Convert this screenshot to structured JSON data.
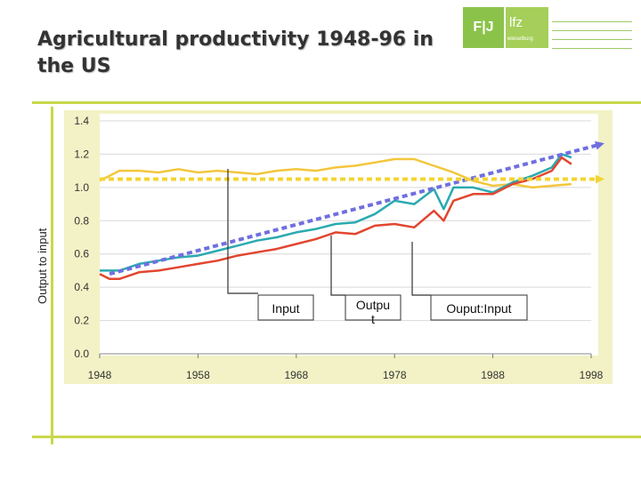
{
  "title": "Agricultural productivity 1948-96 in the US",
  "logo": {
    "mark": "F|J",
    "mark2": "lfz",
    "mark2_sub": "wieselburg"
  },
  "chart_data": {
    "type": "line",
    "ylabel": "Output to input",
    "xlim": [
      1948,
      1998
    ],
    "ylim": [
      0.0,
      1.4
    ],
    "xticks": [
      1948,
      1958,
      1968,
      1978,
      1988,
      1998
    ],
    "yticks": [
      0.0,
      0.2,
      0.4,
      0.6,
      0.8,
      1.0,
      1.2,
      1.4
    ],
    "grid": true,
    "series": [
      {
        "name": "Input",
        "color": "#f3c63c",
        "width": 2.5,
        "x": [
          1948,
          1950,
          1952,
          1954,
          1956,
          1958,
          1960,
          1962,
          1964,
          1966,
          1968,
          1970,
          1972,
          1974,
          1976,
          1978,
          1980,
          1982,
          1984,
          1986,
          1988,
          1990,
          1992,
          1994,
          1996
        ],
        "y": [
          1.04,
          1.1,
          1.1,
          1.09,
          1.11,
          1.09,
          1.1,
          1.09,
          1.08,
          1.1,
          1.11,
          1.1,
          1.12,
          1.13,
          1.15,
          1.17,
          1.17,
          1.13,
          1.09,
          1.04,
          1.01,
          1.02,
          1.0,
          1.01,
          1.02
        ]
      },
      {
        "name": "Outpu t",
        "color": "#2aaab0",
        "width": 2.5,
        "x": [
          1948,
          1950,
          1952,
          1954,
          1956,
          1958,
          1960,
          1962,
          1964,
          1966,
          1968,
          1970,
          1972,
          1974,
          1976,
          1978,
          1980,
          1982,
          1983,
          1984,
          1986,
          1988,
          1990,
          1992,
          1994,
          1995,
          1996
        ],
        "y": [
          0.5,
          0.5,
          0.54,
          0.56,
          0.58,
          0.59,
          0.62,
          0.65,
          0.68,
          0.7,
          0.73,
          0.75,
          0.78,
          0.79,
          0.84,
          0.92,
          0.9,
          0.99,
          0.87,
          1.0,
          1.0,
          0.97,
          1.03,
          1.07,
          1.12,
          1.2,
          1.18
        ]
      },
      {
        "name": "Ouput:Input",
        "color": "#e2462f",
        "width": 2.5,
        "x": [
          1948,
          1949,
          1950,
          1952,
          1954,
          1956,
          1958,
          1960,
          1962,
          1964,
          1966,
          1968,
          1970,
          1972,
          1974,
          1976,
          1978,
          1980,
          1982,
          1983,
          1984,
          1986,
          1988,
          1990,
          1992,
          1994,
          1995,
          1996
        ],
        "y": [
          0.48,
          0.45,
          0.45,
          0.49,
          0.5,
          0.52,
          0.54,
          0.56,
          0.59,
          0.61,
          0.63,
          0.66,
          0.69,
          0.73,
          0.72,
          0.77,
          0.78,
          0.76,
          0.86,
          0.8,
          0.92,
          0.96,
          0.96,
          1.02,
          1.05,
          1.1,
          1.18,
          1.14
        ]
      }
    ],
    "annotations": [
      {
        "name": "trend-arrow",
        "style": "dashed",
        "color": "#6f6fe0",
        "x": [
          1949,
          1999
        ],
        "y": [
          0.48,
          1.26
        ]
      },
      {
        "name": "flat-arrow",
        "style": "dashed",
        "color": "#f4d432",
        "x": [
          1948,
          1999
        ],
        "y": [
          1.05,
          1.05
        ]
      }
    ]
  }
}
